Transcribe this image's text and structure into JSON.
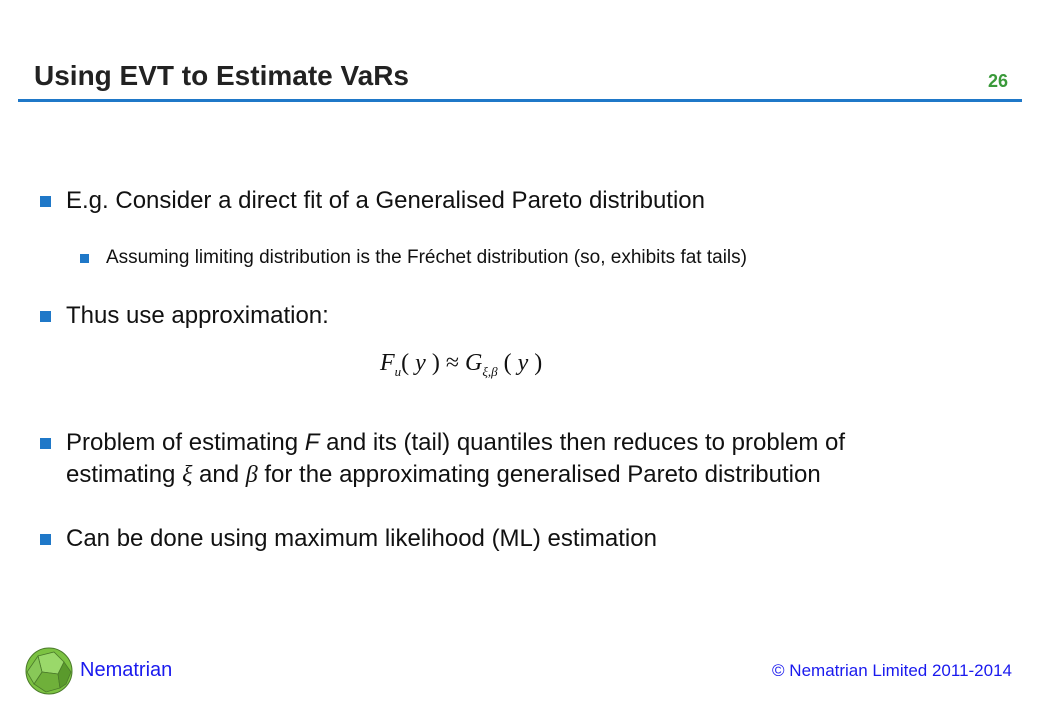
{
  "header": {
    "title": "Using EVT to Estimate VaRs",
    "page_number": "26"
  },
  "bullets": [
    {
      "text": "E.g. Consider a direct fit of a Generalised Pareto distribution"
    },
    {
      "text": "Assuming limiting distribution is the Fréchet distribution (so, exhibits fat tails)"
    },
    {
      "text": "Thus use approximation:"
    },
    {
      "text_a": "Problem of estimating ",
      "F": "F",
      "text_b": " and its (tail) quantiles then reduces to problem of",
      "text_c": "estimating ",
      "xi": "ξ",
      "and": " and ",
      "beta": "β",
      "text_d": " for the approximating generalised Pareto distribution"
    },
    {
      "text": "Can be done using maximum likelihood (ML) estimation"
    }
  ],
  "formula": {
    "F": "F",
    "u": "u",
    "y": "y",
    "approx": "≈",
    "G": "G",
    "sub": "ξ,β"
  },
  "footer": {
    "brand": "Nematrian",
    "copyright": "© Nematrian Limited 2011-2014"
  },
  "colors": {
    "accent": "#1f78c8",
    "page_number": "#3a9a3a",
    "footer_text": "#1a1aee"
  }
}
